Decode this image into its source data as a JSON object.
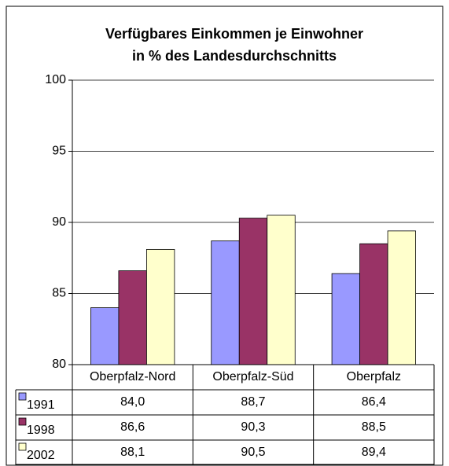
{
  "chart_data": {
    "type": "bar",
    "title": "Verfügbares Einkommen je Einwohner",
    "subtitle": "in % des Landesdurchschnitts",
    "categories": [
      "Oberpfalz-Nord",
      "Oberpfalz-Süd",
      "Oberpfalz"
    ],
    "series": [
      {
        "name": "1991",
        "color": "#9999ff",
        "values": [
          84.0,
          88.7,
          86.4
        ],
        "value_labels": [
          "84,0",
          "88,7",
          "86,4"
        ]
      },
      {
        "name": "1998",
        "color": "#993366",
        "values": [
          86.6,
          90.3,
          88.5
        ],
        "value_labels": [
          "86,6",
          "90,3",
          "88,5"
        ]
      },
      {
        "name": "2002",
        "color": "#ffffcc",
        "values": [
          88.1,
          90.5,
          89.4
        ],
        "value_labels": [
          "88,1",
          "90,5",
          "89,4"
        ]
      }
    ],
    "ylim": [
      80,
      100
    ],
    "yticks": [
      80,
      85,
      90,
      95,
      100
    ],
    "grid": true
  }
}
